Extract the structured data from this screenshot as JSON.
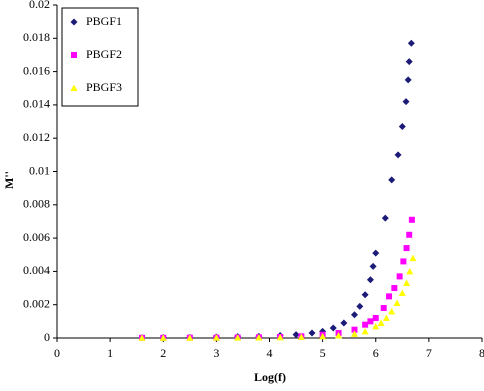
{
  "chart_data": {
    "type": "scatter",
    "x_label": "Log(f)",
    "y_label": "M''",
    "xlim": [
      0,
      8
    ],
    "xticks": [
      0,
      1,
      2,
      3,
      4,
      5,
      6,
      7,
      8
    ],
    "ylim": [
      0,
      0.02
    ],
    "yticks": [
      0,
      0.002,
      0.004,
      0.006,
      0.008,
      0.01,
      0.012,
      0.014,
      0.016,
      0.018,
      0.02
    ],
    "legend": "top-left",
    "series": [
      {
        "name": "PBGF1",
        "color": "#1c1c78",
        "marker": "diamond",
        "x": [
          1.6,
          2.0,
          2.5,
          3.0,
          3.4,
          3.8,
          4.2,
          4.5,
          4.8,
          5.0,
          5.2,
          5.4,
          5.6,
          5.7,
          5.8,
          5.9,
          5.95,
          6.0,
          6.18,
          6.3,
          6.42,
          6.5,
          6.57,
          6.61,
          6.63,
          6.67
        ],
        "values": [
          2e-05,
          3e-05,
          4e-05,
          6e-05,
          8e-05,
          0.0001,
          0.00015,
          0.0002,
          0.0003,
          0.0004,
          0.0006,
          0.0009,
          0.0014,
          0.0019,
          0.0026,
          0.0035,
          0.0043,
          0.0051,
          0.0072,
          0.0095,
          0.011,
          0.0127,
          0.0142,
          0.0155,
          0.0166,
          0.0177
        ]
      },
      {
        "name": "PBGF2",
        "color": "#ff00ff",
        "marker": "square",
        "x": [
          1.6,
          2.0,
          2.5,
          3.0,
          3.4,
          3.8,
          4.2,
          4.6,
          5.0,
          5.3,
          5.6,
          5.8,
          5.9,
          6.0,
          6.15,
          6.25,
          6.35,
          6.45,
          6.52,
          6.58,
          6.63,
          6.68
        ],
        "values": [
          1e-05,
          1e-05,
          2e-05,
          2e-05,
          3e-05,
          4e-05,
          6e-05,
          0.0001,
          0.0002,
          0.0003,
          0.0005,
          0.0008,
          0.001,
          0.0012,
          0.0018,
          0.0025,
          0.003,
          0.0037,
          0.0046,
          0.0054,
          0.0062,
          0.0071
        ]
      },
      {
        "name": "PBGF3",
        "color": "#ffff00",
        "marker": "triangle",
        "x": [
          1.6,
          2.0,
          2.5,
          3.0,
          3.4,
          3.8,
          4.2,
          4.6,
          5.0,
          5.3,
          5.6,
          5.8,
          6.0,
          6.1,
          6.2,
          6.3,
          6.4,
          6.5,
          6.58,
          6.64,
          6.7
        ],
        "values": [
          1e-05,
          1e-05,
          1e-05,
          2e-05,
          2e-05,
          3e-05,
          4e-05,
          6e-05,
          0.0001,
          0.00015,
          0.00025,
          0.0004,
          0.0007,
          0.0009,
          0.0012,
          0.0016,
          0.0021,
          0.0027,
          0.0033,
          0.004,
          0.0048
        ]
      }
    ]
  }
}
